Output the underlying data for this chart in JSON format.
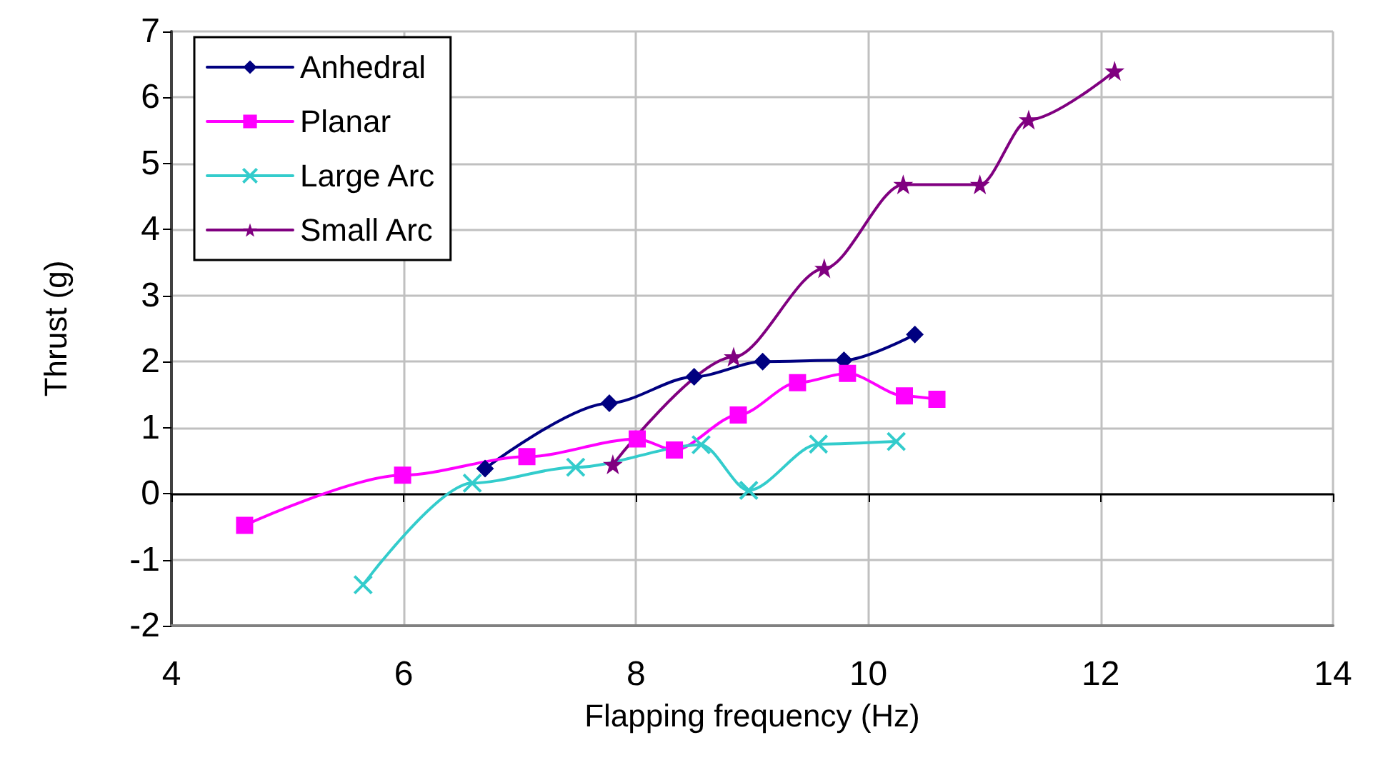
{
  "chart_data": {
    "type": "line",
    "xlabel": "Flapping frequency (Hz)",
    "ylabel": "Thrust (g)",
    "xlim": [
      4,
      14
    ],
    "xticks": [
      4,
      6,
      8,
      10,
      12,
      14
    ],
    "ylim": [
      -2,
      7
    ],
    "yticks": [
      -2,
      -1,
      0,
      1,
      2,
      3,
      4,
      5,
      6,
      7
    ],
    "grid": true,
    "legend": "top left",
    "line_style": "solid",
    "series": [
      {
        "name": "Anhedral",
        "color": "#000080",
        "marker": "diamond",
        "x": [
          6.7,
          7.77,
          8.5,
          9.09,
          9.79,
          10.4
        ],
        "values": [
          0.38,
          1.37,
          1.77,
          2.0,
          2.02,
          2.41
        ]
      },
      {
        "name": "Planar",
        "color": "#ff00ff",
        "marker": "square",
        "x": [
          4.63,
          5.99,
          7.06,
          8.01,
          8.33,
          8.88,
          9.39,
          9.82,
          10.31,
          10.59
        ],
        "values": [
          -0.48,
          0.28,
          0.56,
          0.83,
          0.66,
          1.19,
          1.68,
          1.82,
          1.48,
          1.43
        ]
      },
      {
        "name": "Large Arc",
        "color": "#33cccc",
        "marker": "cross",
        "x": [
          5.65,
          6.59,
          7.48,
          8.56,
          8.97,
          9.57,
          10.24
        ],
        "values": [
          -1.38,
          0.16,
          0.4,
          0.74,
          0.05,
          0.75,
          0.79
        ]
      },
      {
        "name": "Small Arc",
        "color": "#800080",
        "marker": "star",
        "x": [
          7.8,
          8.84,
          9.62,
          10.3,
          10.96,
          11.38,
          12.12
        ],
        "values": [
          0.44,
          2.07,
          3.41,
          4.68,
          4.68,
          5.66,
          6.4
        ]
      }
    ]
  }
}
